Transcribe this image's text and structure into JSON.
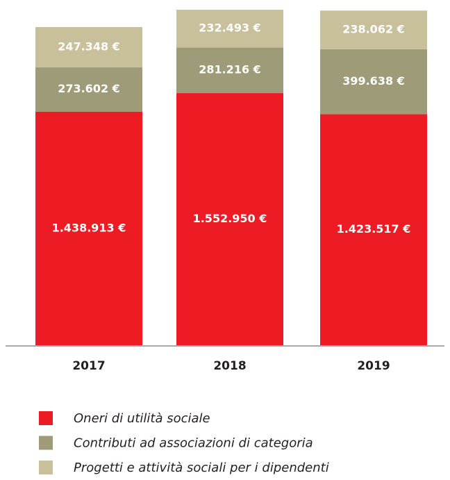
{
  "chart_data": {
    "type": "bar",
    "stacked": true,
    "categories": [
      "2017",
      "2018",
      "2019"
    ],
    "series": [
      {
        "name": "Oneri di utilità sociale",
        "color": "#ed1c24",
        "values": [
          1438913,
          1552950,
          1423517
        ],
        "value_labels": [
          "1.438.913 €",
          "1.552.950 €",
          "1.423.517 €"
        ]
      },
      {
        "name": "Contributi ad associazioni di categoria",
        "color": "#9e9b78",
        "values": [
          273602,
          281216,
          399638
        ],
        "value_labels": [
          "273.602 €",
          "281.216 €",
          "399.638 €"
        ]
      },
      {
        "name": "Progetti e attività sociali per i dipendenti",
        "color": "#c8bf9b",
        "values": [
          247348,
          232493,
          238062
        ],
        "value_labels": [
          "247.348 €",
          "232.493 €",
          "238.062 €"
        ]
      }
    ]
  }
}
